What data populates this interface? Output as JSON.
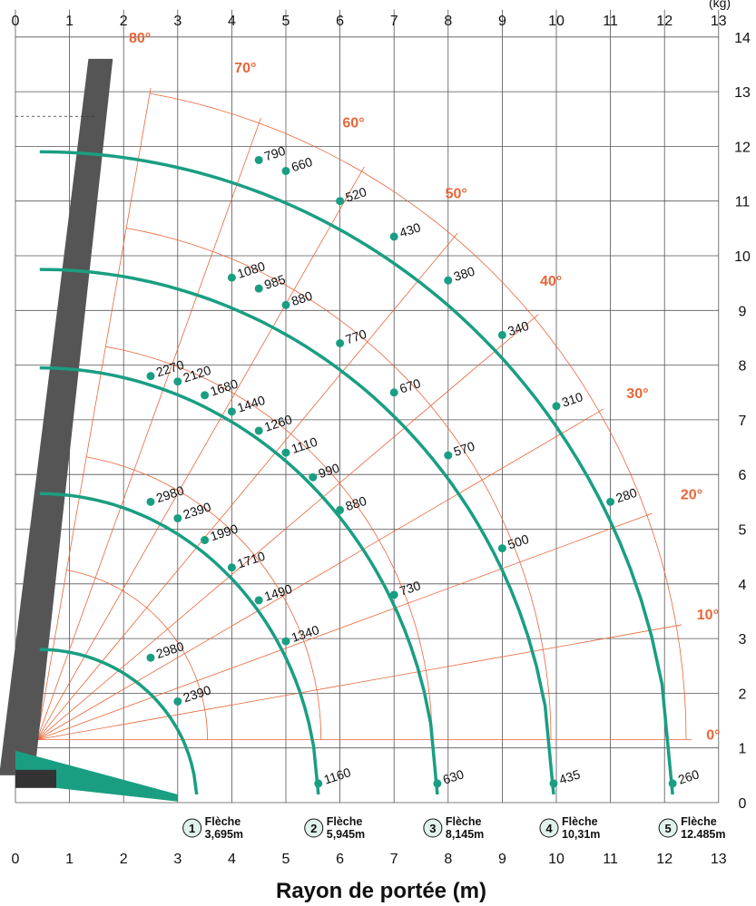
{
  "chart_data": {
    "type": "line",
    "title": "",
    "xlabel": "Rayon de portée (m)",
    "ylabel": "",
    "corner_label": "(kg)",
    "x_ticks": [
      "0",
      "1",
      "2",
      "3",
      "4",
      "5",
      "6",
      "7",
      "8",
      "9",
      "10",
      "11",
      "12",
      "13"
    ],
    "y_ticks": [
      "0",
      "1",
      "2",
      "3",
      "4",
      "5",
      "6",
      "7",
      "8",
      "9",
      "10",
      "11",
      "12",
      "13",
      "14"
    ],
    "xlim": [
      0,
      13
    ],
    "ylim": [
      0,
      14
    ],
    "grid": true,
    "colors": {
      "curve": "#1a9e82",
      "angle_lines": "#e8663a",
      "grid": "#555555",
      "boom": "#555555"
    },
    "angle_labels": [
      "80°",
      "70°",
      "60°",
      "50°",
      "40°",
      "30°",
      "20°",
      "10°",
      "0°"
    ],
    "series": [
      {
        "badge": "1",
        "label_line1": "Flèche",
        "label_line2": "3,695m",
        "radius": 3.35,
        "points": [
          {
            "x": 3.0,
            "y": 1.85,
            "load": "2390"
          },
          {
            "x": 2.5,
            "y": 2.65,
            "load": "2980"
          }
        ]
      },
      {
        "badge": "2",
        "label_line1": "Flèche",
        "label_line2": "5,945m",
        "radius": 5.6,
        "points": [
          {
            "x": 5.6,
            "y": 0.35,
            "load": "1160"
          },
          {
            "x": 5.0,
            "y": 2.95,
            "load": "1340"
          },
          {
            "x": 4.5,
            "y": 3.7,
            "load": "1490"
          },
          {
            "x": 4.0,
            "y": 4.3,
            "load": "1710"
          },
          {
            "x": 3.5,
            "y": 4.8,
            "load": "1990"
          },
          {
            "x": 3.0,
            "y": 5.2,
            "load": "2390"
          },
          {
            "x": 2.5,
            "y": 5.5,
            "load": "2980"
          }
        ]
      },
      {
        "badge": "3",
        "label_line1": "Flèche",
        "label_line2": "8,145m",
        "radius": 7.8,
        "points": [
          {
            "x": 7.8,
            "y": 0.35,
            "load": "630"
          },
          {
            "x": 7.0,
            "y": 3.8,
            "load": "730"
          },
          {
            "x": 6.0,
            "y": 5.35,
            "load": "880"
          },
          {
            "x": 5.5,
            "y": 5.95,
            "load": "990"
          },
          {
            "x": 5.0,
            "y": 6.4,
            "load": "1110"
          },
          {
            "x": 4.5,
            "y": 6.8,
            "load": "1260"
          },
          {
            "x": 4.0,
            "y": 7.15,
            "load": "1440"
          },
          {
            "x": 3.5,
            "y": 7.45,
            "load": "1680"
          },
          {
            "x": 3.0,
            "y": 7.7,
            "load": "2120"
          },
          {
            "x": 2.5,
            "y": 7.8,
            "load": "2270"
          }
        ]
      },
      {
        "badge": "4",
        "label_line1": "Flèche",
        "label_line2": "10,31m",
        "radius": 9.95,
        "points": [
          {
            "x": 9.95,
            "y": 0.35,
            "load": "435"
          },
          {
            "x": 9.0,
            "y": 4.65,
            "load": "500"
          },
          {
            "x": 8.0,
            "y": 6.35,
            "load": "570"
          },
          {
            "x": 7.0,
            "y": 7.5,
            "load": "670"
          },
          {
            "x": 6.0,
            "y": 8.4,
            "load": "770"
          },
          {
            "x": 5.0,
            "y": 9.1,
            "load": "880"
          },
          {
            "x": 4.5,
            "y": 9.4,
            "load": "985"
          },
          {
            "x": 4.0,
            "y": 9.6,
            "load": "1080"
          }
        ]
      },
      {
        "badge": "5",
        "label_line1": "Flèche",
        "label_line2": "12.485m",
        "radius": 12.15,
        "points": [
          {
            "x": 12.15,
            "y": 0.35,
            "load": "260"
          },
          {
            "x": 11.0,
            "y": 5.5,
            "load": "280"
          },
          {
            "x": 10.0,
            "y": 7.25,
            "load": "310"
          },
          {
            "x": 9.0,
            "y": 8.55,
            "load": "340"
          },
          {
            "x": 8.0,
            "y": 9.55,
            "load": "380"
          },
          {
            "x": 7.0,
            "y": 10.35,
            "load": "430"
          },
          {
            "x": 6.0,
            "y": 11.0,
            "load": "520"
          },
          {
            "x": 5.0,
            "y": 11.55,
            "load": "660"
          },
          {
            "x": 4.5,
            "y": 11.75,
            "load": "790"
          }
        ]
      }
    ]
  }
}
